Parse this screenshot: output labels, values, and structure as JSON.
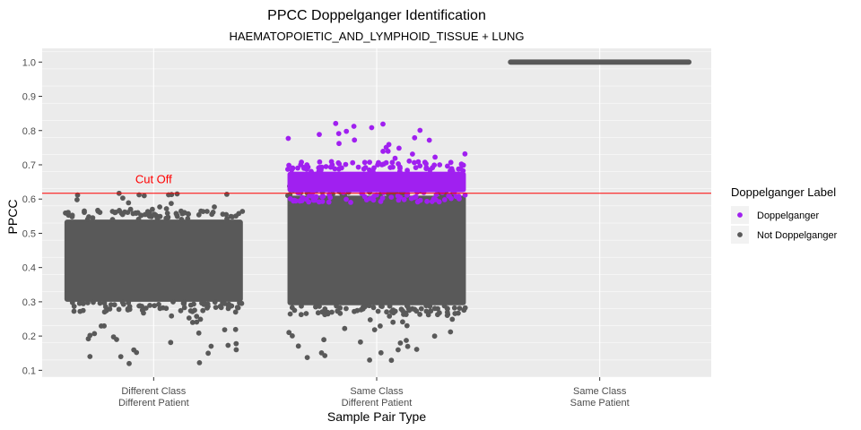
{
  "chart_data": {
    "type": "scatter",
    "title": "PPCC Doppelganger Identification",
    "subtitle": "HAEMATOPOIETIC_AND_LYMPHOID_TISSUE + LUNG",
    "xlabel": "Sample Pair Type",
    "ylabel": "PPCC",
    "categories": [
      [
        "Different Class",
        "Different Patient"
      ],
      [
        "Same Class",
        "Different Patient"
      ],
      [
        "Same Class",
        "Same Patient"
      ]
    ],
    "ylim": [
      0.08,
      1.04
    ],
    "yticks": [
      "0.1",
      "0.2",
      "0.3",
      "0.4",
      "0.5",
      "0.6",
      "0.7",
      "0.8",
      "0.9",
      "1.0"
    ],
    "grid": true,
    "panel_background": "#ebebeb",
    "grid_color": "#ffffff",
    "cutoff": {
      "value": 0.617,
      "label": "Cut Off",
      "color": "#ff0000"
    },
    "legend": {
      "title": "Doppelganger Label",
      "position": "right",
      "entries": [
        {
          "label": "Doppelganger",
          "color": "#a020f0"
        },
        {
          "label": "Not Doppelganger",
          "color": "#595959"
        }
      ]
    },
    "series": [
      {
        "name": "Not Doppelganger",
        "color": "#595959",
        "groups": [
          {
            "category_index": 0,
            "dense_range": [
              0.3,
              0.54
            ],
            "outliers": [
              0.12,
              0.14,
              0.15,
              0.16,
              0.17,
              0.18,
              0.19,
              0.2,
              0.21,
              0.22,
              0.23,
              0.24,
              0.25,
              0.26,
              0.27,
              0.28,
              0.55,
              0.56,
              0.57,
              0.58,
              0.59,
              0.6,
              0.61,
              0.615
            ]
          },
          {
            "category_index": 1,
            "dense_range": [
              0.29,
              0.61
            ],
            "outliers": [
              0.13,
              0.14,
              0.15,
              0.16,
              0.17,
              0.18,
              0.19,
              0.2,
              0.21,
              0.22,
              0.23,
              0.24,
              0.25,
              0.26,
              0.27,
              0.28
            ]
          },
          {
            "category_index": 2,
            "line_value": 1.0
          }
        ]
      },
      {
        "name": "Doppelganger",
        "color": "#a020f0",
        "groups": [
          {
            "category_index": 1,
            "dense_range": [
              0.62,
              0.68
            ],
            "outliers": [
              0.69,
              0.7,
              0.71,
              0.72,
              0.73,
              0.74,
              0.75,
              0.76,
              0.77,
              0.78,
              0.79,
              0.8,
              0.81,
              0.82
            ]
          }
        ]
      }
    ]
  }
}
